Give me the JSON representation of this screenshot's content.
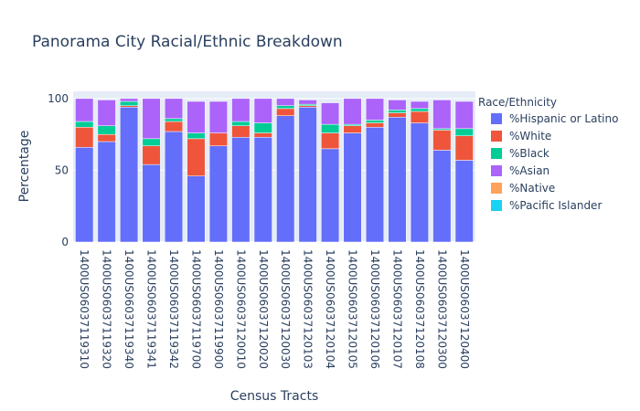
{
  "chart_data": {
    "type": "bar",
    "stacked": true,
    "title": "Panorama City Racial/Ethnic Breakdown",
    "xlabel": "Census Tracts",
    "ylabel": "Percentage",
    "ylim": [
      0,
      105
    ],
    "yticks": [
      0,
      50,
      100
    ],
    "grid": true,
    "legend_title": "Race/Ethnicity",
    "legend_position": "right",
    "categories": [
      "1400US06037119310",
      "1400US06037119320",
      "1400US06037119340",
      "1400US06037119341",
      "1400US06037119342",
      "1400US06037119700",
      "1400US06037119900",
      "1400US06037120010",
      "1400US06037120020",
      "1400US06037120030",
      "1400US06037120103",
      "1400US06037120104",
      "1400US06037120105",
      "1400US06037120106",
      "1400US06037120107",
      "1400US06037120108",
      "1400US06037120300",
      "1400US06037120400"
    ],
    "series": [
      {
        "name": "%Hispanic or Latino",
        "color": "#636efa",
        "values": [
          66,
          70,
          94,
          54,
          77,
          46,
          67,
          73,
          73,
          88,
          94,
          65,
          76,
          80,
          87,
          83,
          64,
          57
        ]
      },
      {
        "name": "%White",
        "color": "#ef553b",
        "values": [
          14,
          5,
          1,
          13,
          7,
          26,
          9,
          8,
          3,
          5,
          1,
          11,
          5,
          3,
          3,
          8,
          14,
          17
        ]
      },
      {
        "name": "%Black",
        "color": "#00cc96",
        "values": [
          4,
          6,
          3,
          5,
          2,
          4,
          0,
          3,
          7,
          2,
          1,
          6,
          1,
          2,
          2,
          2,
          1,
          5
        ]
      },
      {
        "name": "%Asian",
        "color": "#ab63fa",
        "values": [
          16,
          18,
          2,
          28,
          14,
          22,
          22,
          16,
          17,
          5,
          3,
          15,
          18,
          15,
          7,
          5,
          20,
          19
        ]
      },
      {
        "name": "%Native",
        "color": "#ffa15a",
        "values": [
          0,
          0,
          0,
          0,
          0,
          0,
          0,
          0,
          0,
          0,
          0,
          0,
          0,
          0,
          0,
          0,
          0,
          0
        ]
      },
      {
        "name": "%Pacific Islander",
        "color": "#19d3f3",
        "values": [
          0,
          0,
          0,
          0,
          0,
          0,
          0,
          0,
          0,
          0,
          0,
          0,
          0,
          0,
          0,
          0,
          0,
          0
        ]
      }
    ]
  }
}
